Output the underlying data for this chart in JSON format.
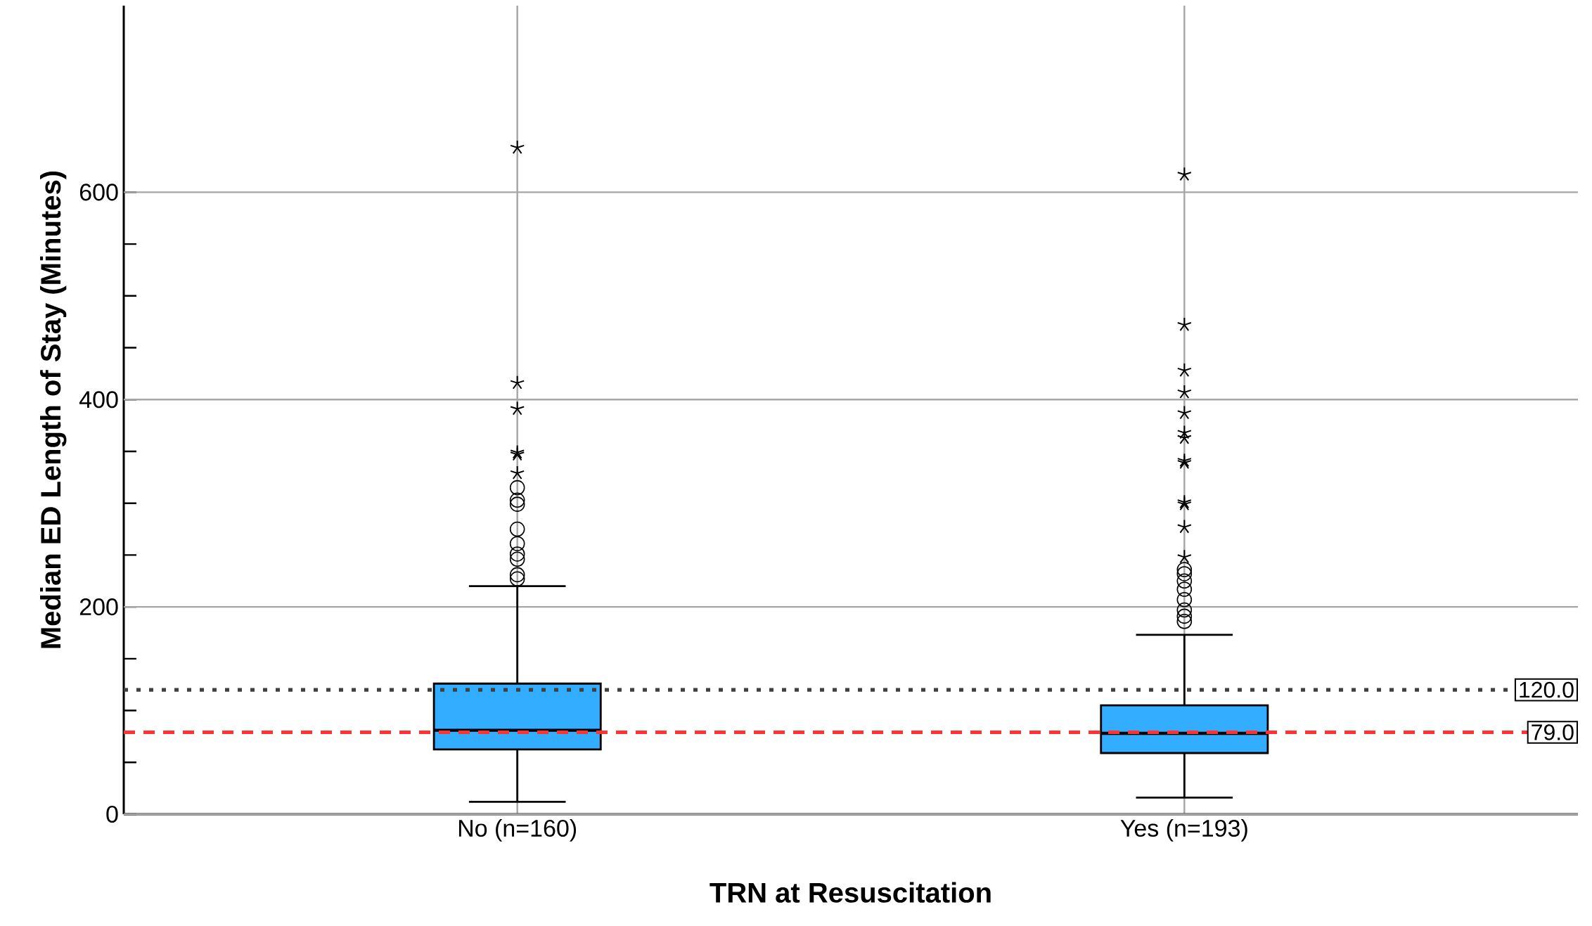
{
  "chart_data": {
    "type": "box",
    "xlabel": "TRN at Resuscitation",
    "ylabel": "Median ED Length of Stay (Minutes)",
    "categories": [
      "No (n=160)",
      "Yes (n=193)"
    ],
    "series": [
      {
        "color": "#33adff",
        "boxes": [
          {
            "low": 12,
            "q1": 62.5,
            "median": 81,
            "q3": 126,
            "high": 220,
            "outliers": [
              643,
              416,
              391,
              349,
              347,
              329,
              315,
              303,
              299,
              275,
              261,
              251,
              246,
              231,
              227
            ]
          },
          {
            "low": 16,
            "q1": 59,
            "median": 78,
            "q3": 105,
            "high": 173,
            "outliers": [
              617,
              472,
              428,
              407,
              387,
              368,
              363,
              341,
              339,
              301,
              299,
              277,
              248,
              236,
              232,
              225,
              217,
              207,
              197,
              191,
              186
            ]
          }
        ]
      }
    ],
    "ylim": [
      0,
      780
    ],
    "yticks": [
      0,
      200,
      400,
      600
    ],
    "grid": true,
    "ref_lines": [
      {
        "axis": "y",
        "value": 120,
        "label": "120.0",
        "color": "#404040",
        "line_style": "dotted"
      },
      {
        "axis": "y",
        "value": 79,
        "label": "79.0",
        "color": "#ff3333",
        "line_style": "dashed"
      }
    ]
  }
}
